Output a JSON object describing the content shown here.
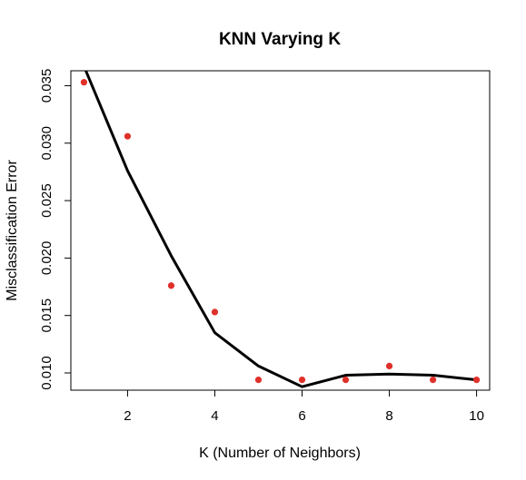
{
  "chart_data": {
    "type": "scatter",
    "title": "KNN Varying K",
    "xlabel": "K (Number of Neighbors)",
    "ylabel": "Misclassification Error",
    "xlim": [
      0.7,
      10.3
    ],
    "ylim": [
      0.0085,
      0.0363
    ],
    "x_ticks": [
      2,
      4,
      6,
      8,
      10
    ],
    "x_tick_labels": [
      "2",
      "4",
      "6",
      "8",
      "10"
    ],
    "y_ticks": [
      0.01,
      0.015,
      0.02,
      0.025,
      0.03,
      0.035
    ],
    "y_tick_labels": [
      "0.010",
      "0.015",
      "0.020",
      "0.025",
      "0.030",
      "0.035"
    ],
    "grid": false,
    "legend": "none",
    "series": [
      {
        "style": "points",
        "color": "#e0302a",
        "x": [
          1,
          2,
          3,
          4,
          5,
          6,
          7,
          8,
          9,
          10
        ],
        "y": [
          0.0353,
          0.0306,
          0.0176,
          0.0153,
          0.0094,
          0.0094,
          0.0094,
          0.0106,
          0.0094,
          0.0094
        ]
      },
      {
        "style": "line",
        "color": "#000000",
        "x": [
          1,
          2,
          3,
          4,
          5,
          6,
          7,
          8,
          9,
          10
        ],
        "y": [
          0.0367,
          0.0276,
          0.0202,
          0.0135,
          0.0106,
          0.0088,
          0.0098,
          0.0099,
          0.0098,
          0.0094
        ]
      }
    ]
  }
}
